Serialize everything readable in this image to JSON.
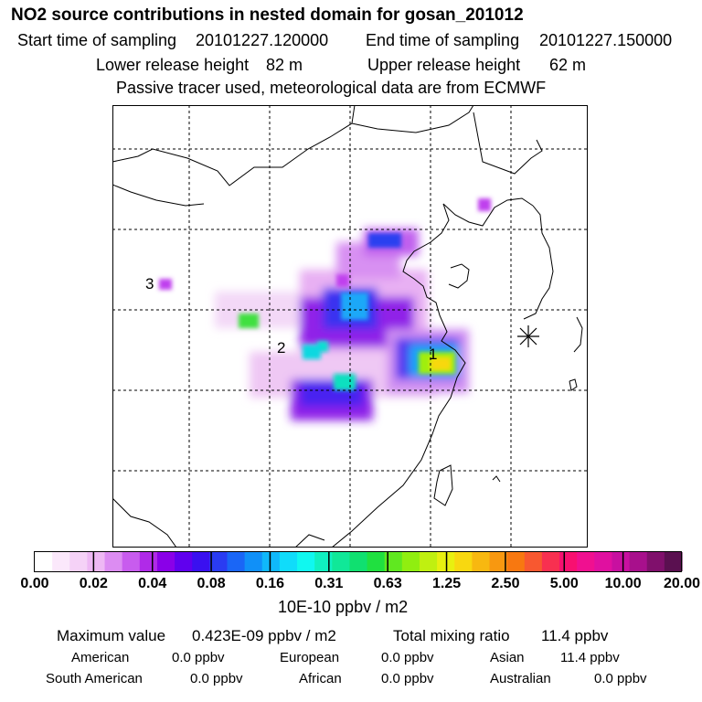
{
  "header": {
    "title": "NO2 source contributions in nested domain for gosan_201012",
    "start_label": "Start time of sampling",
    "start_value": "20101227.120000",
    "end_label": "End time of sampling",
    "end_value": "20101227.150000",
    "lower_label": "Lower release height",
    "lower_value": "82 m",
    "upper_label": "Upper release height",
    "upper_value": "62 m",
    "note": "Passive tracer used, meteorological data are from ECMWF"
  },
  "map": {
    "source_labels": [
      "1",
      "2",
      "3"
    ],
    "receptor_icon": "asterisk-icon"
  },
  "colorbar": {
    "ticks": [
      "0.00",
      "0.02",
      "0.04",
      "0.08",
      "0.16",
      "0.31",
      "0.63",
      "1.25",
      "2.50",
      "5.00",
      "10.00",
      "20.00"
    ],
    "units": "10E-10 ppbv / m2",
    "colors": [
      "#ffffff",
      "#fbe8fb",
      "#f5d2f7",
      "#eeb8f4",
      "#dc8cf2",
      "#c85cee",
      "#b02ae8",
      "#8a00e8",
      "#6000ee",
      "#3a10f0",
      "#2a3cf2",
      "#1a66f6",
      "#1090f8",
      "#10b8fa",
      "#10dcfa",
      "#10f8f0",
      "#10f0c0",
      "#10e898",
      "#10e070",
      "#20e040",
      "#60e820",
      "#90ee10",
      "#c0f010",
      "#e8f010",
      "#f8d810",
      "#f8b810",
      "#f89810",
      "#f87810",
      "#f85830",
      "#f83050",
      "#f81070",
      "#f01090",
      "#e010a0",
      "#c810a0",
      "#a8108c",
      "#80106c",
      "#5a1050"
    ]
  },
  "summary": {
    "max_label": "Maximum value",
    "max_value": "0.423E-09 ppbv / m2",
    "total_label": "Total mixing ratio",
    "total_value": "11.4 ppbv",
    "regions": [
      {
        "name": "American",
        "value": "0.0 ppbv"
      },
      {
        "name": "European",
        "value": "0.0 ppbv"
      },
      {
        "name": "Asian",
        "value": "11.4 ppbv"
      },
      {
        "name": "South American",
        "value": "0.0 ppbv"
      },
      {
        "name": "African",
        "value": "0.0 ppbv"
      },
      {
        "name": "Australian",
        "value": "0.0 ppbv"
      }
    ]
  }
}
